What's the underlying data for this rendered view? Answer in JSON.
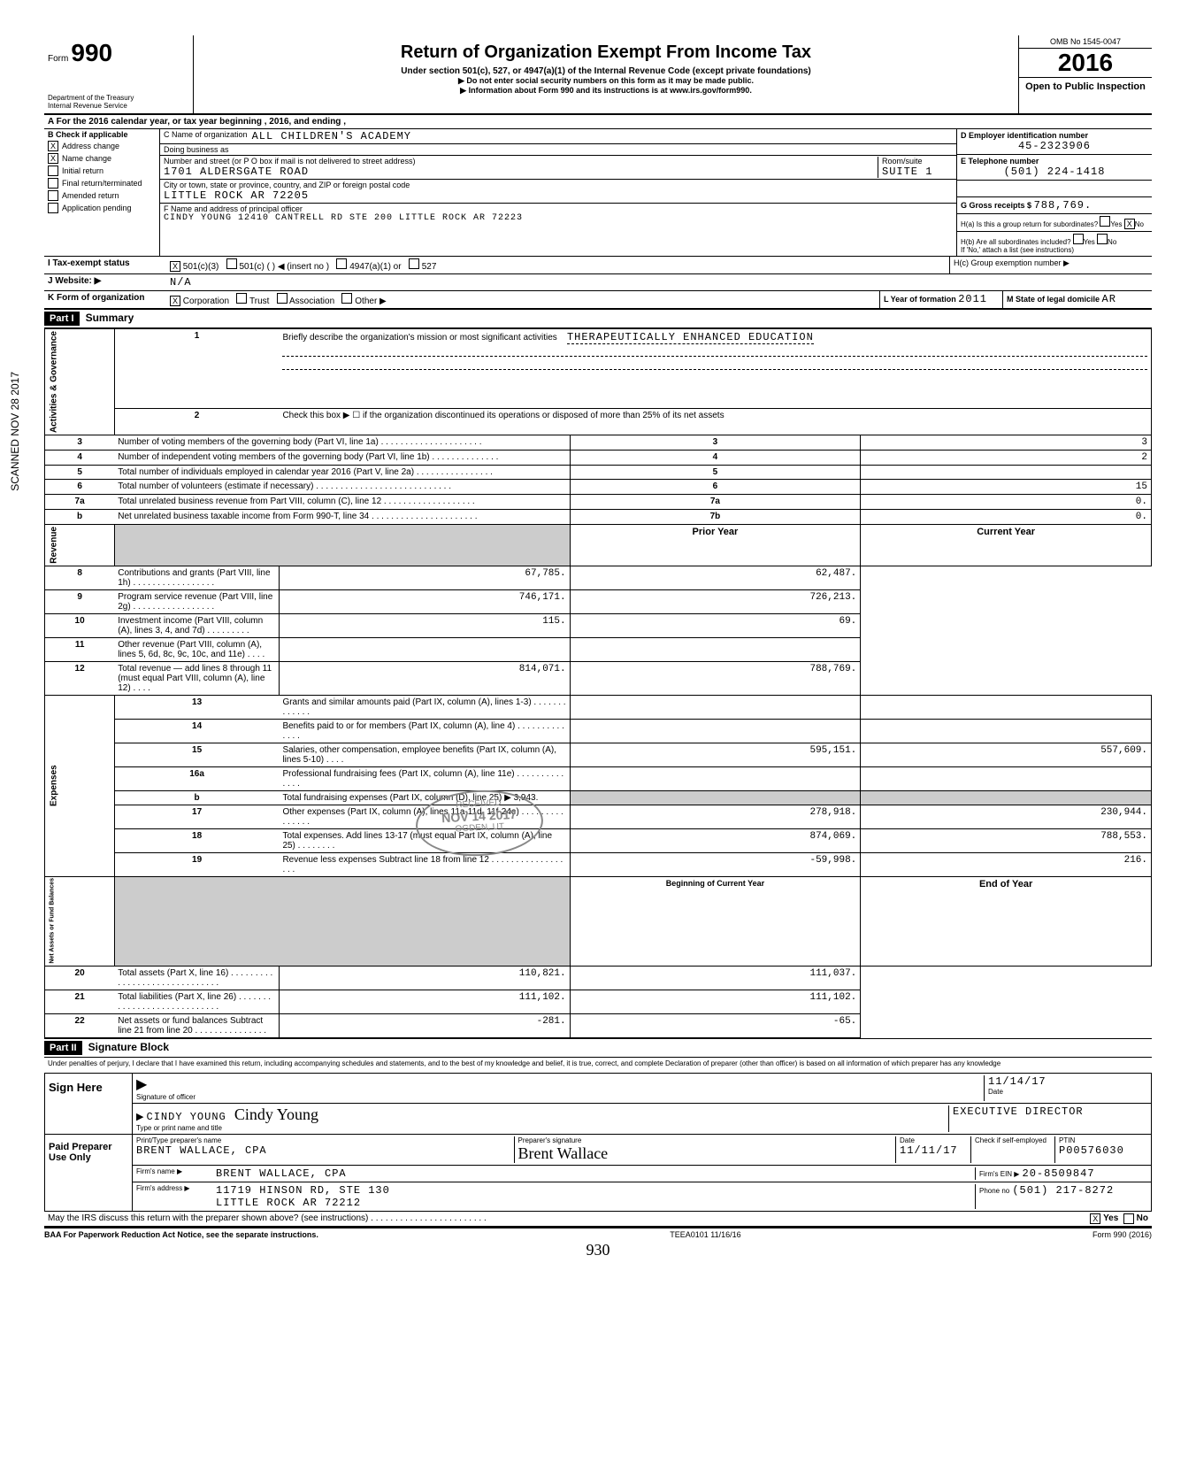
{
  "header": {
    "form_label": "Form",
    "form_number": "990",
    "dept": "Department of the Treasury",
    "irs": "Internal Revenue Service",
    "title": "Return of Organization Exempt From Income Tax",
    "subtitle": "Under section 501(c), 527, or 4947(a)(1) of the Internal Revenue Code (except private foundations)",
    "note1": "▶ Do not enter social security numbers on this form as it may be made public.",
    "note2": "▶ Information about Form 990 and its instructions is at www.irs.gov/form990.",
    "omb": "OMB No 1545-0047",
    "year": "2016",
    "open": "Open to Public Inspection"
  },
  "row_a": "A   For the 2016 calendar year, or tax year beginning                                          , 2016, and ending                              ,",
  "section_b": {
    "label": "B   Check if applicable",
    "checks": [
      {
        "checked": true,
        "label": "Address change"
      },
      {
        "checked": true,
        "label": "Name change"
      },
      {
        "checked": false,
        "label": "Initial return"
      },
      {
        "checked": false,
        "label": "Final return/terminated"
      },
      {
        "checked": false,
        "label": "Amended return"
      },
      {
        "checked": false,
        "label": "Application pending"
      }
    ],
    "c_name_label": "C  Name of organization",
    "c_name": "ALL CHILDREN'S ACADEMY",
    "dba_label": "Doing business as",
    "addr_label": "Number and street (or P O  box if mail is not delivered to street address)",
    "addr": "1701 ALDERSGATE ROAD",
    "room_label": "Room/suite",
    "room": "SUITE 1",
    "city_label": "City or town, state or province, country, and ZIP or foreign postal code",
    "city": "LITTLE ROCK                              AR   72205",
    "f_label": "F  Name and address of principal officer",
    "f_value": "CINDY YOUNG 12410 CANTRELL RD STE 200 LITTLE  ROCK  AR 72223",
    "d_label": "D   Employer identification number",
    "d_value": "45-2323906",
    "e_label": "E   Telephone number",
    "e_value": "(501)  224-1418",
    "g_label": "G  Gross receipts $",
    "g_value": "788,769.",
    "ha_label": "H(a)  Is this a group return for subordinates?",
    "ha_yes": "Yes",
    "ha_no": "No",
    "hb_label": "H(b)  Are all subordinates included?",
    "hb_note": "If 'No,' attach a list  (see instructions)",
    "hc_label": "H(c)  Group exemption number  ▶"
  },
  "row_i": {
    "label": "I       Tax-exempt status",
    "opt1": "501(c)(3)",
    "opt2": "501(c) (          ) ◀   (insert no )",
    "opt3": "4947(a)(1) or",
    "opt4": "527"
  },
  "row_j": {
    "label": "J      Website: ▶",
    "value": "N/A"
  },
  "row_k": {
    "label": "K     Form of organization",
    "corp": "Corporation",
    "trust": "Trust",
    "assoc": "Association",
    "other": "Other ▶",
    "year_label": "L  Year of formation",
    "year": "2011",
    "state_label": "M  State of legal domicile",
    "state": "AR"
  },
  "part1": {
    "header": "Part I",
    "title": "Summary",
    "line1_label": "Briefly describe the organization's mission or most significant activities",
    "line1_value": "THERAPEUTICALLY ENHANCED EDUCATION",
    "line2": "Check this box ▶  ☐  if the organization discontinued its operations or disposed of more than 25% of its net assets",
    "lines_gov": [
      {
        "n": "3",
        "desc": "Number of voting members of the governing body (Part VI, line 1a) . . . . . . . . . . . . . . . . . . . . .",
        "box": "3",
        "val": "3"
      },
      {
        "n": "4",
        "desc": "Number of independent voting members of the governing body (Part VI, line 1b)  . . . . . . . . . . . . . .",
        "box": "4",
        "val": "2"
      },
      {
        "n": "5",
        "desc": "Total number of individuals employed in calendar year 2016 (Part V, line 2a) . . . . . . . . . . . . . . . .",
        "box": "5",
        "val": ""
      },
      {
        "n": "6",
        "desc": "Total number of volunteers (estimate if necessary)  . . . . . . . . . . . . . . . . . . . . . . . . . . . .",
        "box": "6",
        "val": "15"
      },
      {
        "n": "7a",
        "desc": "Total unrelated business revenue from Part VIII, column (C), line 12  . . . . . . . . . . . . . . . . . . .",
        "box": "7a",
        "val": "0."
      },
      {
        "n": "b",
        "desc": "Net unrelated business taxable income from Form 990-T, line 34 . . . . . . . . . . . . . . . . . . . . . .",
        "box": "7b",
        "val": "0."
      }
    ],
    "header_prior": "Prior Year",
    "header_current": "Current Year",
    "revenue_label": "Revenue",
    "lines_rev": [
      {
        "n": "8",
        "desc": "Contributions and grants (Part VIII, line 1h) . . . . . . . . . . . . . . . . .",
        "prior": "67,785.",
        "curr": "62,487."
      },
      {
        "n": "9",
        "desc": "Program service revenue (Part VIII, line 2g)  . . . . . . . . . . . . . . . . .",
        "prior": "746,171.",
        "curr": "726,213."
      },
      {
        "n": "10",
        "desc": "Investment income (Part VIII, column (A), lines 3, 4, and 7d) . . . . . . . . .",
        "prior": "115.",
        "curr": "69."
      },
      {
        "n": "11",
        "desc": "Other revenue (Part VIII, column (A), lines 5, 6d, 8c, 9c, 10c, and 11e) . . . .",
        "prior": "",
        "curr": ""
      },
      {
        "n": "12",
        "desc": "Total revenue — add lines 8 through 11 (must equal Part VIII, column (A), line 12)  . . . .",
        "prior": "814,071.",
        "curr": "788,769."
      }
    ],
    "expenses_label": "Expenses",
    "lines_exp": [
      {
        "n": "13",
        "desc": "Grants and similar amounts paid (Part IX, column (A), lines 1-3)  . . . . . . . . . . . . .",
        "prior": "",
        "curr": ""
      },
      {
        "n": "14",
        "desc": "Benefits paid to or for members (Part IX, column (A), line 4)  . . . . . . . . . . . . . .",
        "prior": "",
        "curr": ""
      },
      {
        "n": "15",
        "desc": "Salaries, other compensation, employee benefits (Part IX, column (A), lines 5-10)  . . . .",
        "prior": "595,151.",
        "curr": "557,609."
      },
      {
        "n": "16a",
        "desc": "Professional fundraising fees (Part IX, column (A), line 11e)  . . . . . . . . . . . . . .",
        "prior": "",
        "curr": ""
      },
      {
        "n": "b",
        "desc": "Total fundraising expenses (Part IX, column (D), line 25) ▶          3,943.",
        "prior": "gray",
        "curr": "gray"
      },
      {
        "n": "17",
        "desc": "Other expenses (Part IX, column (A), lines 11a-11d, 11f-24e) . . . . . . . . . . . . . . .",
        "prior": "278,918.",
        "curr": "230,944."
      },
      {
        "n": "18",
        "desc": "Total expenses. Add lines 13-17 (must equal Part IX, column (A), line 25)  . . . . . . . .",
        "prior": "874,069.",
        "curr": "788,553."
      },
      {
        "n": "19",
        "desc": "Revenue less expenses  Subtract line 18 from line 12  . . . . . . . . . . . . . . . . . .",
        "prior": "-59,998.",
        "curr": "216."
      }
    ],
    "net_label": "Net Assets or Fund Balances",
    "header_begin": "Beginning of Current Year",
    "header_end": "End of Year",
    "lines_net": [
      {
        "n": "20",
        "desc": "Total assets (Part X, line 16) . . . . . . . . . . . . . . . . . . . . . . . . . . . . . .",
        "prior": "110,821.",
        "curr": "111,037."
      },
      {
        "n": "21",
        "desc": "Total liabilities (Part X, line 26) . . . . . . . . . . . . . . . . . . . . . . . . . . . .",
        "prior": "111,102.",
        "curr": "111,102."
      },
      {
        "n": "22",
        "desc": "Net assets or fund balances  Subtract line 21 from line 20  . . . . . . . . . . . . . . .",
        "prior": "-281.",
        "curr": "-65."
      }
    ]
  },
  "part2": {
    "header": "Part II",
    "title": "Signature Block",
    "perjury": "Under penalties of perjury, I declare that I have examined this return, including accompanying schedules and statements, and to the best of my knowledge and belief, it is true, correct, and complete  Declaration of preparer (other than officer) is based on all information of which preparer has any knowledge",
    "sign_here": "Sign Here",
    "sig_officer_label": "Signature of officer",
    "date_label": "Date",
    "date": "11/14/17",
    "officer_name": "CINDY YOUNG",
    "officer_sig": "Cindy Young",
    "officer_title": "EXECUTIVE DIRECTOR",
    "name_title_label": "Type or print name and title",
    "paid_label": "Paid Preparer Use Only",
    "prep_name_label": "Print/Type preparer's name",
    "prep_name": "BRENT WALLACE, CPA",
    "prep_sig_label": "Preparer's signature",
    "prep_sig": "Brent Wallace",
    "prep_date": "11/11/17",
    "check_label": "Check         if self-employed",
    "ptin_label": "PTIN",
    "ptin": "P00576030",
    "firm_name_label": "Firm's name    ▶",
    "firm_name": "BRENT WALLACE, CPA",
    "firm_ein_label": "Firm's EIN ▶",
    "firm_ein": "20-8509847",
    "firm_addr_label": "Firm's address  ▶",
    "firm_addr1": "11719 HINSON RD,  STE 130",
    "firm_addr2": "LITTLE ROCK                         AR   72212",
    "phone_label": "Phone no",
    "phone": "(501)  217-8272",
    "discuss": "May the IRS discuss this return with the preparer shown above? (see instructions) . . . . . . . . . . . . . . . . . . . . . . . .",
    "yes": "Yes",
    "no": "No"
  },
  "footer": {
    "baa": "BAA  For Paperwork Reduction Act Notice, see the separate instructions.",
    "teea": "TEEA0101   11/16/16",
    "form": "Form 990 (2016)",
    "handwritten": "930"
  },
  "stamps": {
    "scanned": "SCANNED  NOV 28 2017",
    "received": "RECEIVED",
    "received_date": "NOV 14 2017",
    "ogden": "OGDEN, UT"
  }
}
